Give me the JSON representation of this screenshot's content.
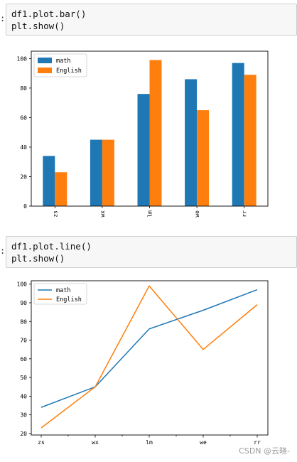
{
  "cells": [
    {
      "lines": [
        "df1.plot.bar()",
        "plt.show()"
      ]
    },
    {
      "lines": [
        "df1.plot.line()",
        "plt.show()"
      ]
    }
  ],
  "watermark": "CSDN @云晓-",
  "colors": {
    "math": "#1f77b4",
    "english": "#ff7f0e"
  },
  "chart_data": [
    {
      "type": "bar",
      "categories": [
        "zs",
        "wx",
        "lm",
        "we",
        "rr"
      ],
      "series": [
        {
          "name": "math",
          "values": [
            34,
            45,
            76,
            86,
            97
          ]
        },
        {
          "name": "English",
          "values": [
            23,
            45,
            99,
            65,
            89
          ]
        }
      ],
      "ylim": [
        0,
        105
      ],
      "yticks": [
        0,
        20,
        40,
        60,
        80,
        100
      ],
      "legend": "top-left",
      "grid": false
    },
    {
      "type": "line",
      "categories": [
        "zs",
        "wx",
        "lm",
        "we",
        "rr"
      ],
      "series": [
        {
          "name": "math",
          "values": [
            34,
            45,
            76,
            86,
            97
          ]
        },
        {
          "name": "English",
          "values": [
            23,
            45,
            99,
            65,
            89
          ]
        }
      ],
      "ylim": [
        19.2,
        101.8
      ],
      "yticks": [
        20,
        30,
        40,
        50,
        60,
        70,
        80,
        90,
        100
      ],
      "legend": "top-left",
      "grid": false
    }
  ]
}
